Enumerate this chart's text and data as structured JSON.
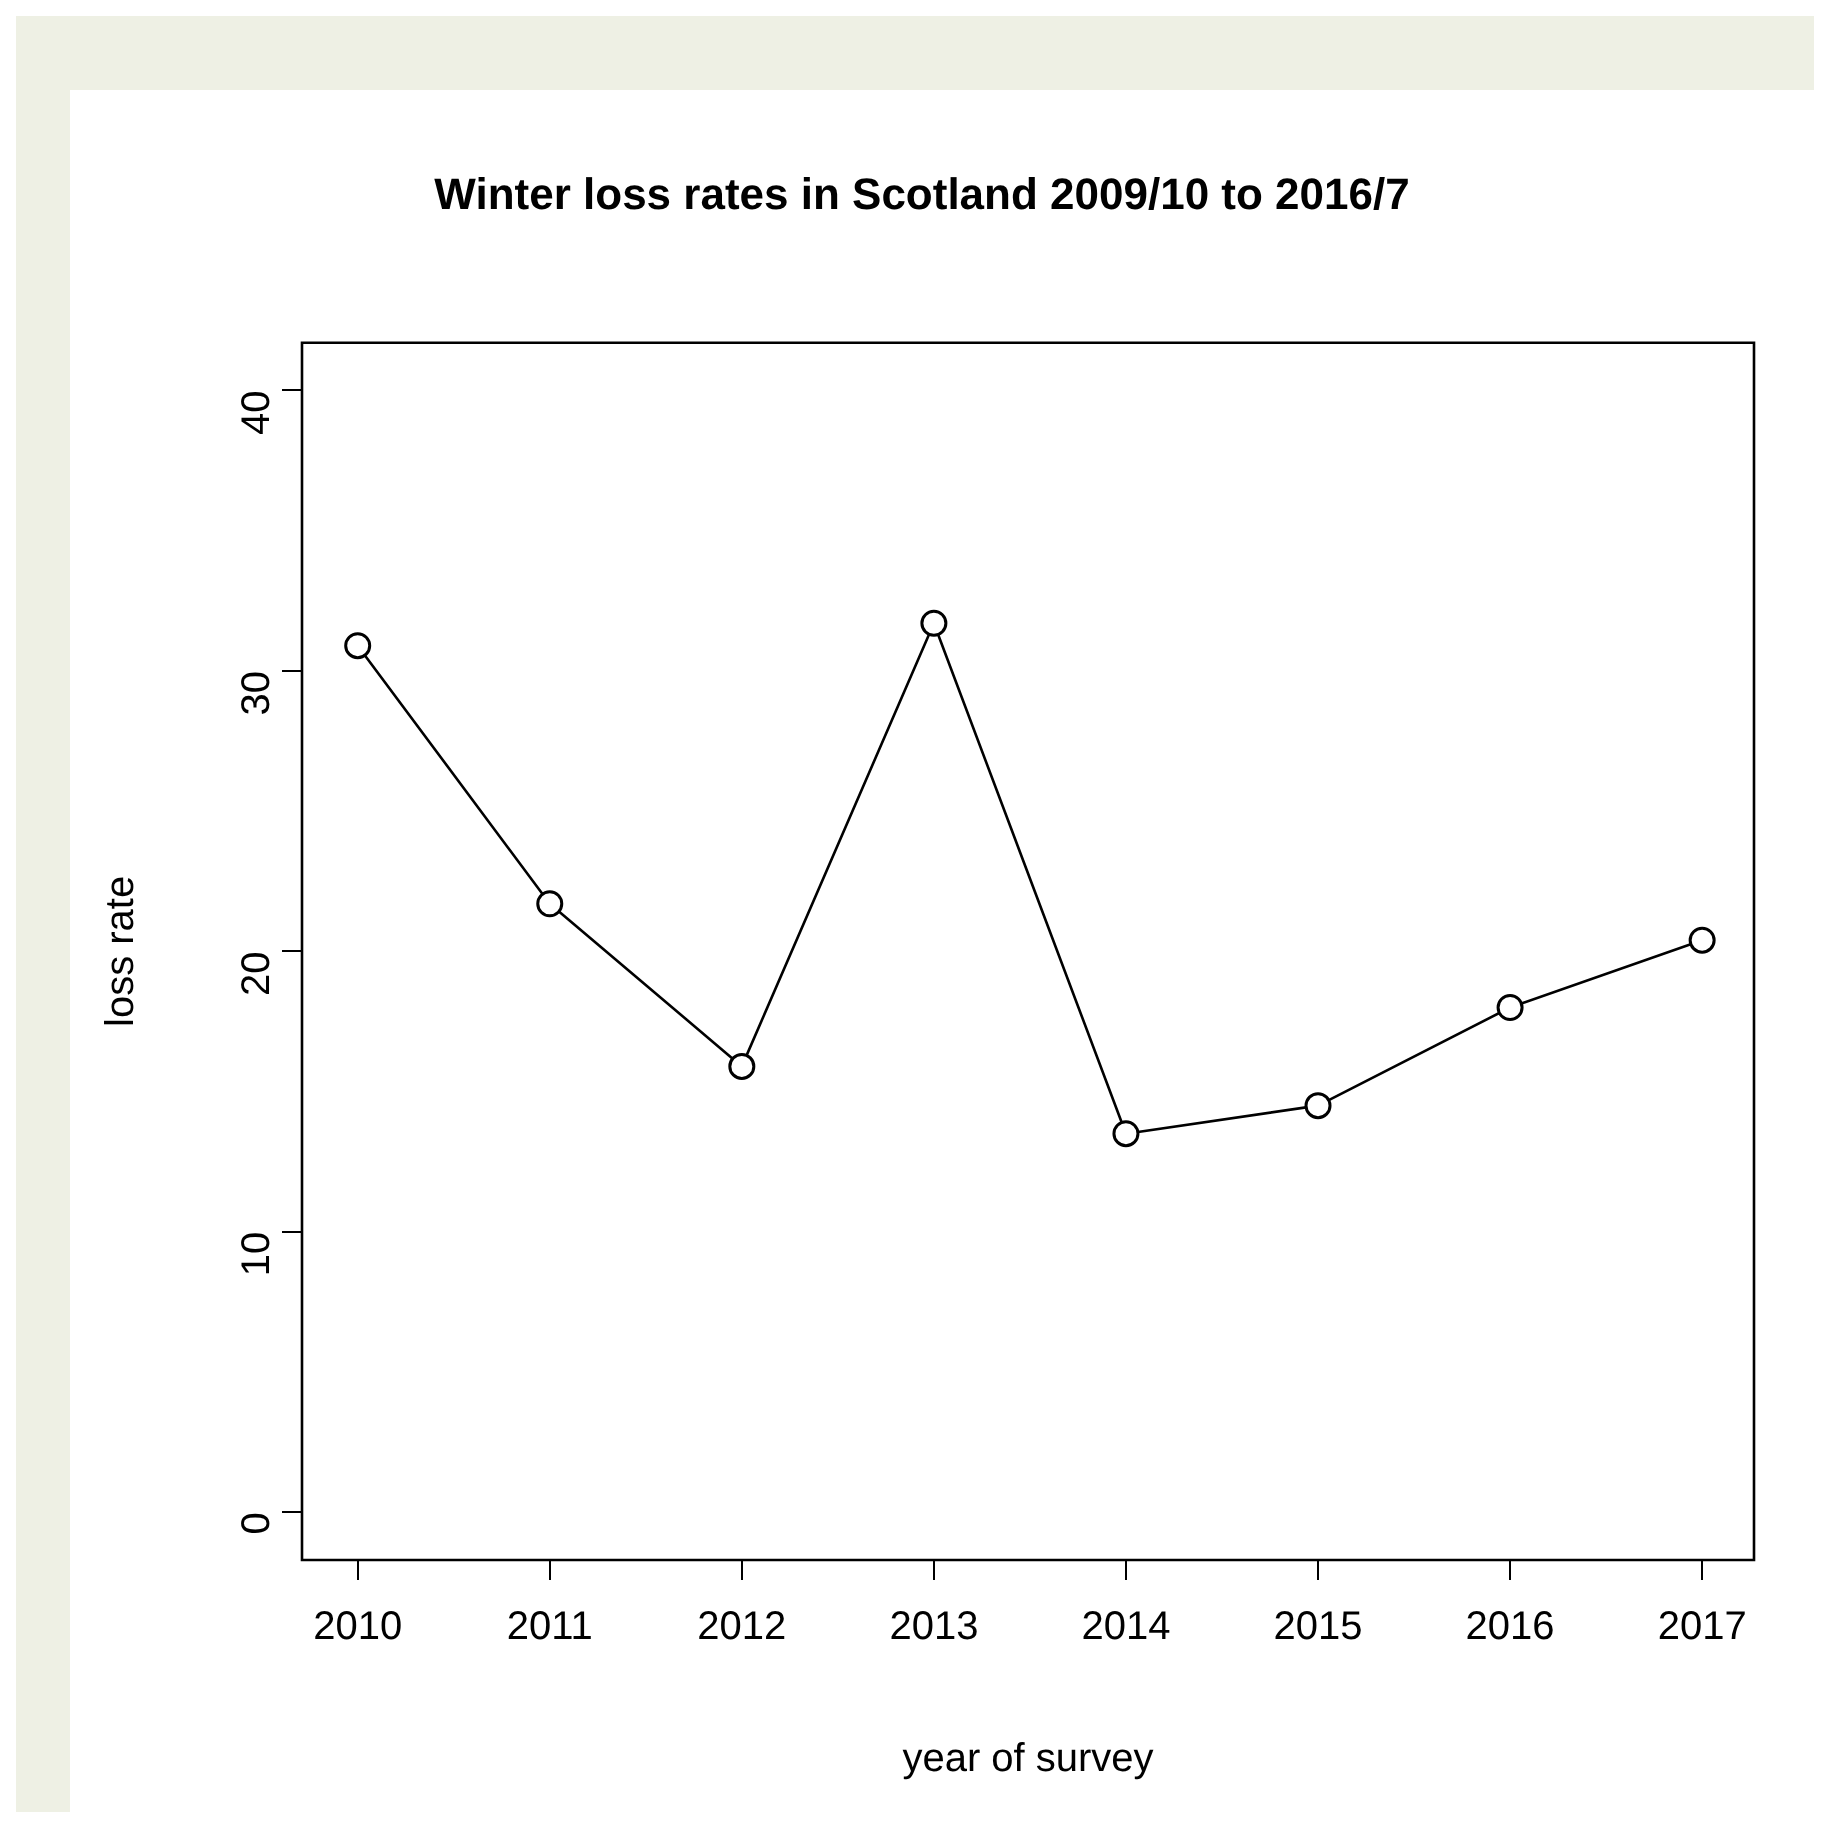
{
  "chart_data": {
    "type": "line",
    "title": "Winter loss rates in Scotland 2009/10 to 2016/7",
    "xlabel": "year of survey",
    "ylabel": "loss rate",
    "x": [
      2010,
      2011,
      2012,
      2013,
      2014,
      2015,
      2016,
      2017
    ],
    "series": [
      {
        "color": "#000000",
        "values": [
          30.9,
          21.7,
          15.9,
          31.7,
          13.5,
          14.5,
          18.0,
          20.4
        ]
      }
    ],
    "xlim": [
      2009.71,
      2017.27
    ],
    "xticks": [
      2010,
      2011,
      2012,
      2013,
      2014,
      2015,
      2016,
      2017
    ],
    "ylim": [
      -1.7,
      41.7
    ],
    "yticks": [
      0,
      10,
      20,
      30,
      40
    ],
    "grid": false,
    "legend": false,
    "marker": "circle",
    "line_style": "solid"
  }
}
